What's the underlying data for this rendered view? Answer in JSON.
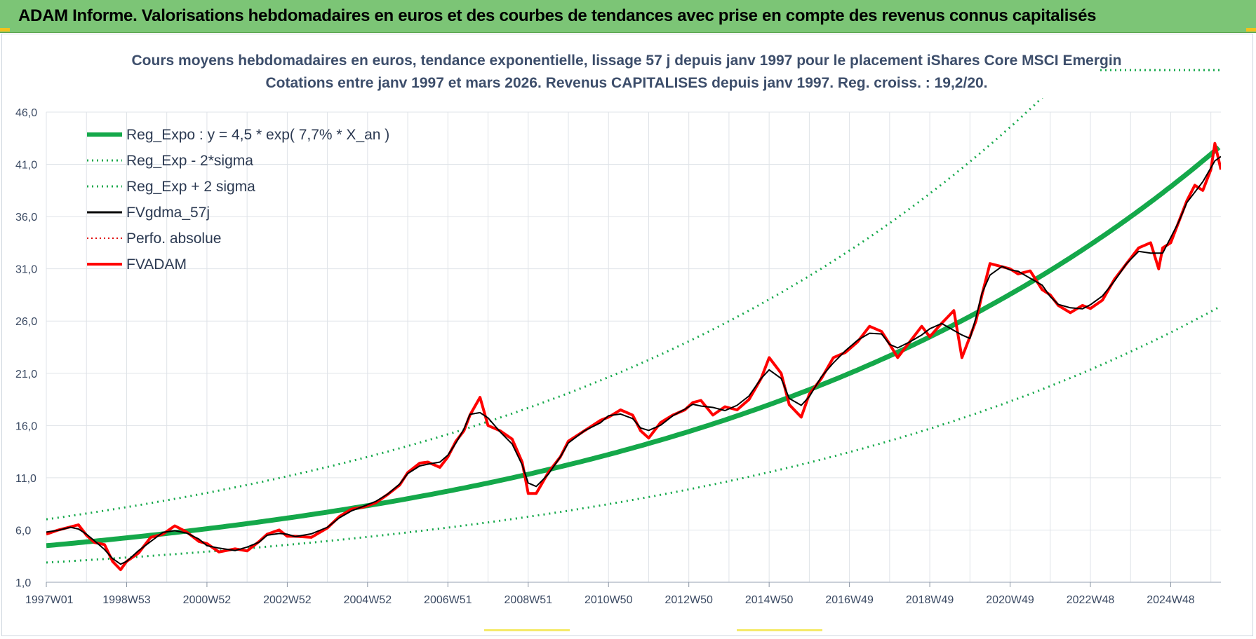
{
  "banner": {
    "title": "ADAM Informe. Valorisations hebdomadaires en euros et des courbes de tendances avec prise en compte des revenus connus capitalisés"
  },
  "colors": {
    "banner_bg": "#7cc576",
    "reg_expo": "#14a84a",
    "sigma": "#14a84a",
    "fvgdma": "#000000",
    "perfo": "#e00000",
    "fvadam": "#ff0000",
    "grid": "#dfe3e8"
  },
  "chart_data": {
    "type": "line",
    "title_line1": "Cours moyens hebdomadaires en euros, tendance exponentielle, lissage 57 j depuis janv 1997 pour le placement iShares Core MSCI Emergin",
    "title_line2": "Cotations entre janv 1997 et mars 2026. Revenus CAPITALISES depuis janv 1997. Reg. croiss. : 19,2/20.",
    "xlabel": "",
    "ylabel": "",
    "ylim": [
      1.0,
      46.0
    ],
    "xlim": [
      1997.0,
      2026.25
    ],
    "y_ticks": [
      1.0,
      6.0,
      11.0,
      16.0,
      21.0,
      26.0,
      31.0,
      36.0,
      41.0,
      46.0
    ],
    "y_tick_labels": [
      "1,0",
      "6,0",
      "11,0",
      "16,0",
      "21,0",
      "26,0",
      "31,0",
      "36,0",
      "41,0",
      "46,0"
    ],
    "x_ticks": [
      1997.0,
      1999.0,
      2001.0,
      2003.0,
      2005.0,
      2007.0,
      2009.0,
      2011.0,
      2013.0,
      2015.0,
      2017.0,
      2019.0,
      2021.0,
      2023.0,
      2025.0
    ],
    "x_tick_labels": [
      "1997W01",
      "1998W53",
      "2000W52",
      "2002W52",
      "2004W52",
      "2006W51",
      "2008W51",
      "2010W50",
      "2012W50",
      "2014W50",
      "2016W49",
      "2018W49",
      "2020W49",
      "2022W48",
      "2024W48"
    ],
    "legend_position": "top-left",
    "regression": {
      "a": 4.5,
      "rate": 0.077,
      "sigma_factor": 1.56
    },
    "series": [
      {
        "name": "Reg_Expo : y = 4,5 * exp( 7,7% *  X_an )",
        "style": "solid-thick"
      },
      {
        "name": "Reg_Exp - 2*sigma",
        "style": "dotted"
      },
      {
        "name": "Reg_Exp + 2 sigma",
        "style": "dotted"
      },
      {
        "name": "FVgdma_57j",
        "style": "solid-thin"
      },
      {
        "name": "Perfo. absolue",
        "style": "dotted-red"
      },
      {
        "name": "FVADAM",
        "style": "solid-red",
        "x": [
          1997.0,
          1997.3,
          1997.6,
          1997.8,
          1998.0,
          1998.2,
          1998.45,
          1998.65,
          1998.85,
          1999.0,
          1999.3,
          1999.6,
          1999.9,
          2000.2,
          2000.5,
          2000.8,
          2001.0,
          2001.3,
          2001.7,
          2002.0,
          2002.3,
          2002.5,
          2002.8,
          2003.0,
          2003.2,
          2003.6,
          2004.0,
          2004.3,
          2004.6,
          2004.9,
          2005.2,
          2005.5,
          2005.8,
          2006.0,
          2006.3,
          2006.5,
          2006.8,
          2007.0,
          2007.2,
          2007.4,
          2007.55,
          2007.8,
          2008.0,
          2008.3,
          2008.6,
          2008.85,
          2009.0,
          2009.2,
          2009.5,
          2009.8,
          2010.0,
          2010.4,
          2010.8,
          2011.0,
          2011.3,
          2011.6,
          2011.8,
          2012.0,
          2012.3,
          2012.6,
          2012.9,
          2013.1,
          2013.3,
          2013.6,
          2013.9,
          2014.2,
          2014.5,
          2014.8,
          2015.0,
          2015.3,
          2015.5,
          2015.8,
          2016.0,
          2016.3,
          2016.6,
          2016.9,
          2017.2,
          2017.5,
          2017.8,
          2018.0,
          2018.2,
          2018.5,
          2018.8,
          2019.0,
          2019.3,
          2019.6,
          2019.8,
          2020.0,
          2020.15,
          2020.3,
          2020.5,
          2020.8,
          2021.0,
          2021.2,
          2021.5,
          2021.8,
          2022.0,
          2022.2,
          2022.5,
          2022.8,
          2023.0,
          2023.3,
          2023.6,
          2023.9,
          2024.2,
          2024.5,
          2024.7,
          2024.8,
          2025.0,
          2025.2,
          2025.4,
          2025.6,
          2025.8,
          2026.0,
          2026.1,
          2026.25
        ],
        "values": [
          5.6,
          6.0,
          6.3,
          6.5,
          5.5,
          4.8,
          4.6,
          3.0,
          2.2,
          3.0,
          3.8,
          5.3,
          5.6,
          6.4,
          5.8,
          4.9,
          4.7,
          3.9,
          4.2,
          4.0,
          4.9,
          5.6,
          6.0,
          5.4,
          5.4,
          5.3,
          6.2,
          7.3,
          8.0,
          8.2,
          8.6,
          9.4,
          10.3,
          11.5,
          12.4,
          12.5,
          12.0,
          13.0,
          14.5,
          15.5,
          17.0,
          18.7,
          16.0,
          15.5,
          14.7,
          12.5,
          9.5,
          9.5,
          11.5,
          13.0,
          14.5,
          15.5,
          16.5,
          16.8,
          17.5,
          17.0,
          15.5,
          14.8,
          16.3,
          17.0,
          17.5,
          18.2,
          18.4,
          17.0,
          17.8,
          17.5,
          18.5,
          20.5,
          22.5,
          21.0,
          18.0,
          16.8,
          19.0,
          20.5,
          22.5,
          23.0,
          24.0,
          25.5,
          25.0,
          23.8,
          22.5,
          24.0,
          25.5,
          24.5,
          25.8,
          27.0,
          22.5,
          24.5,
          26.0,
          28.5,
          31.5,
          31.2,
          31.0,
          30.5,
          30.8,
          29.0,
          28.5,
          27.5,
          26.8,
          27.5,
          27.2,
          28.0,
          30.0,
          31.5,
          33.0,
          33.5,
          31.0,
          33.0,
          33.5,
          35.5,
          37.5,
          39.0,
          38.5,
          40.5,
          43.0,
          40.5
        ]
      }
    ]
  }
}
